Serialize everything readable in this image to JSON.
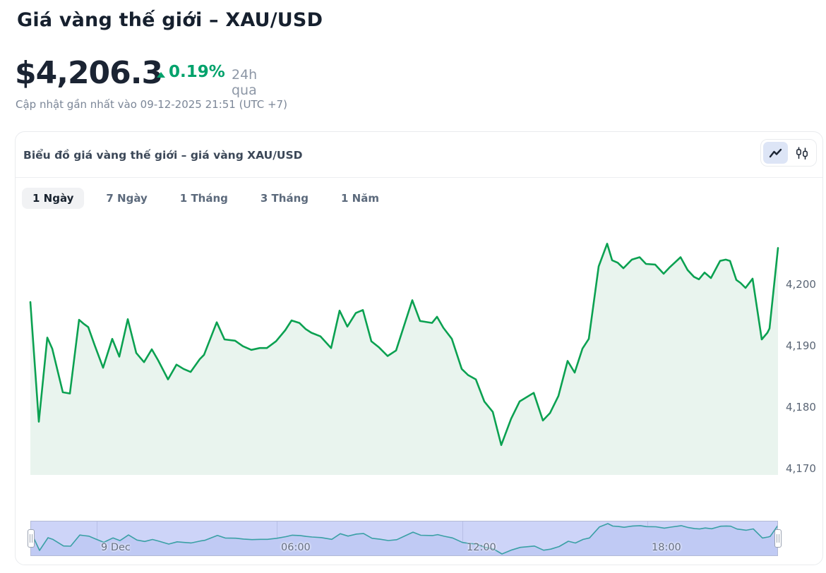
{
  "page": {
    "title": "Giá vàng thế giới – XAU/USD",
    "price": "$4,206.3",
    "change_percent": "0.19%",
    "change_direction": "up",
    "change_period": "24h qua",
    "updated": "Cập nhật gần nhất vào 09-12-2025 21:51 (UTC +7)"
  },
  "card": {
    "title": "Biểu đồ giá vàng thế giới – giá vàng XAU/USD",
    "tabs": [
      {
        "label": "1 Ngày",
        "active": true
      },
      {
        "label": "7 Ngày",
        "active": false
      },
      {
        "label": "1 Tháng",
        "active": false
      },
      {
        "label": "3 Tháng",
        "active": false
      },
      {
        "label": "1 Năm",
        "active": false
      }
    ],
    "chart_type_toggle": {
      "active": "line",
      "options": [
        "line",
        "candlestick"
      ]
    }
  },
  "colors": {
    "accent_green": "#00a26b",
    "line_green": "#0ba151",
    "area_fill": "#e9f4ee",
    "nav_background": "#cdd4f8",
    "nav_area_fill": "#c0caf4",
    "nav_line_teal": "#3aa0a5",
    "text_dark": "#1b2433",
    "text_gray": "#7b8697"
  },
  "chart_data": {
    "type": "area",
    "title": "Biểu đồ giá vàng thế giới – giá vàng XAU/USD",
    "instrument": "XAU/USD",
    "selected_range": "1 Ngày",
    "x_unit": "time pixels across one 24h window (Dec 8 21:51 → Dec 9 21:51)",
    "ylim": [
      4168.5,
      4208
    ],
    "grid": "off",
    "legend": "none",
    "y_ticks": [
      {
        "v": 4200,
        "label": "4,200"
      },
      {
        "v": 4190,
        "label": "4,190"
      },
      {
        "v": 4180,
        "label": "4,180"
      },
      {
        "v": 4170,
        "label": "4,170"
      }
    ],
    "series": [
      {
        "name": "XAU/USD price",
        "color": "#0ba151",
        "points": [
          [
            42,
            4196.9
          ],
          [
            54,
            4177.4
          ],
          [
            66,
            4191.1
          ],
          [
            73,
            4189.3
          ],
          [
            88,
            4182.2
          ],
          [
            98,
            4182
          ],
          [
            111,
            4194
          ],
          [
            117,
            4193.4
          ],
          [
            124,
            4192.8
          ],
          [
            133,
            4189.9
          ],
          [
            145,
            4186.2
          ],
          [
            158,
            4190.9
          ],
          [
            168,
            4188
          ],
          [
            180,
            4194.1
          ],
          [
            192,
            4188.6
          ],
          [
            203,
            4187.1
          ],
          [
            214,
            4189.2
          ],
          [
            223,
            4187.4
          ],
          [
            237,
            4184.3
          ],
          [
            249,
            4186.7
          ],
          [
            259,
            4186
          ],
          [
            269,
            4185.5
          ],
          [
            282,
            4187.6
          ],
          [
            288,
            4188.3
          ],
          [
            306,
            4193.6
          ],
          [
            317,
            4190.8
          ],
          [
            332,
            4190.6
          ],
          [
            343,
            4189.7
          ],
          [
            355,
            4189.1
          ],
          [
            367,
            4189.4
          ],
          [
            377,
            4189.4
          ],
          [
            390,
            4190.5
          ],
          [
            403,
            4192.3
          ],
          [
            412,
            4193.9
          ],
          [
            423,
            4193.5
          ],
          [
            432,
            4192.5
          ],
          [
            440,
            4191.9
          ],
          [
            453,
            4191.3
          ],
          [
            468,
            4189.4
          ],
          [
            480,
            4195.5
          ],
          [
            491,
            4192.9
          ],
          [
            503,
            4195.1
          ],
          [
            513,
            4195.6
          ],
          [
            525,
            4190.5
          ],
          [
            536,
            4189.5
          ],
          [
            548,
            4188.1
          ],
          [
            560,
            4189
          ],
          [
            583,
            4197.2
          ],
          [
            594,
            4193.8
          ],
          [
            611,
            4193.5
          ],
          [
            618,
            4194.5
          ],
          [
            627,
            4192.7
          ],
          [
            639,
            4190.9
          ],
          [
            653,
            4186
          ],
          [
            662,
            4185
          ],
          [
            673,
            4184.3
          ],
          [
            685,
            4180.7
          ],
          [
            697,
            4179
          ],
          [
            709,
            4173.6
          ],
          [
            723,
            4177.9
          ],
          [
            735,
            4180.7
          ],
          [
            755,
            4182.1
          ],
          [
            768,
            4177.6
          ],
          [
            778,
            4178.8
          ],
          [
            790,
            4181.6
          ],
          [
            803,
            4187.3
          ],
          [
            813,
            4185.4
          ],
          [
            824,
            4189.3
          ],
          [
            833,
            4190.9
          ],
          [
            847,
            4202.7
          ],
          [
            859,
            4206.4
          ],
          [
            866,
            4203.7
          ],
          [
            874,
            4203.3
          ],
          [
            882,
            4202.4
          ],
          [
            894,
            4203.8
          ],
          [
            905,
            4204.2
          ],
          [
            914,
            4203.1
          ],
          [
            927,
            4203
          ],
          [
            939,
            4201.5
          ],
          [
            948,
            4202.6
          ],
          [
            963,
            4204.2
          ],
          [
            973,
            4202.1
          ],
          [
            982,
            4201
          ],
          [
            989,
            4200.6
          ],
          [
            997,
            4201.7
          ],
          [
            1006,
            4200.8
          ],
          [
            1019,
            4203.6
          ],
          [
            1027,
            4203.8
          ],
          [
            1033,
            4203.6
          ],
          [
            1042,
            4200.5
          ],
          [
            1048,
            4200
          ],
          [
            1055,
            4199.2
          ],
          [
            1065,
            4200.7
          ],
          [
            1078,
            4190.8
          ],
          [
            1086,
            4191.9
          ],
          [
            1089,
            4192.6
          ],
          [
            1101,
            4205.7
          ]
        ]
      }
    ],
    "navigator": {
      "range_selected": "full 24h",
      "ticks": [
        {
          "label": "9 Dec"
        },
        {
          "label": "06:00"
        },
        {
          "label": "12:00"
        },
        {
          "label": "18:00"
        }
      ]
    }
  }
}
